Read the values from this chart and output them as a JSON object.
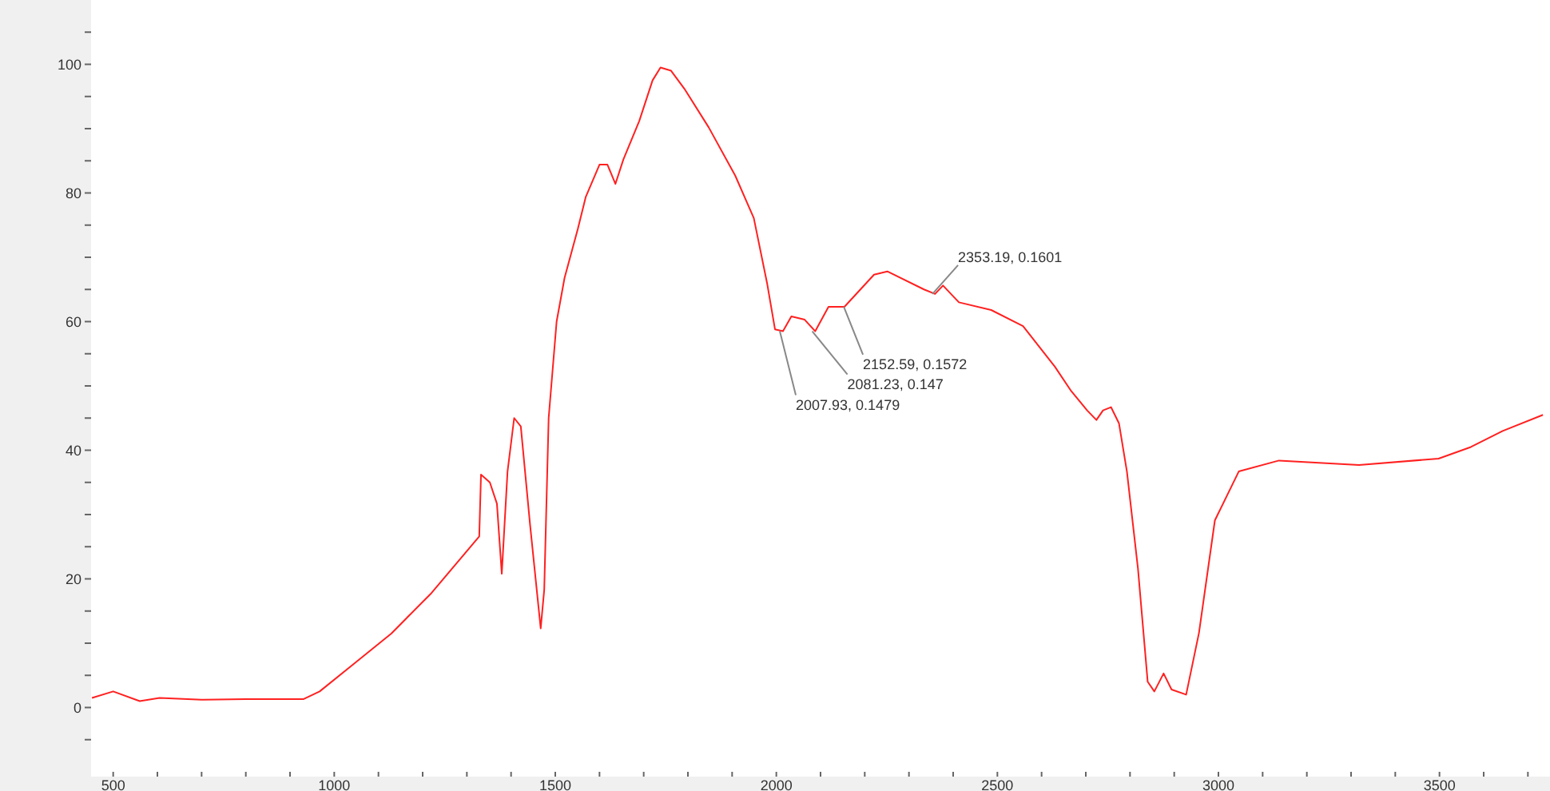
{
  "chart_data": {
    "type": "line",
    "x": [
      452,
      500,
      560,
      605,
      700,
      800,
      930,
      967,
      1039,
      1129,
      1220,
      1328,
      1332,
      1352,
      1368,
      1379,
      1392,
      1407,
      1422,
      1443,
      1467,
      1475,
      1485,
      1503,
      1521,
      1551,
      1569,
      1600,
      1618,
      1636,
      1654,
      1690,
      1720,
      1738,
      1762,
      1792,
      1847,
      1907,
      1949,
      1979,
      1997,
      2015,
      2034,
      2064,
      2088,
      2118,
      2154,
      2221,
      2251,
      2334,
      2359,
      2377,
      2413,
      2486,
      2558,
      2630,
      2667,
      2703,
      2724,
      2739,
      2757,
      2775,
      2793,
      2818,
      2840,
      2855,
      2876,
      2894,
      2927,
      2956,
      2992,
      3046,
      3137,
      3318,
      3498,
      3571,
      3643,
      3734
    ],
    "series": [
      {
        "color": "#ff2020",
        "values": [
          1.5,
          2.5,
          1,
          1.5,
          1.2,
          1.3,
          1.3,
          2.5,
          6.5,
          11.5,
          17.8,
          26.6,
          36.2,
          35,
          31.7,
          20.8,
          36.7,
          45,
          43.7,
          28.4,
          12.3,
          18.3,
          45,
          60,
          66.8,
          74.4,
          79.4,
          84.4,
          84.4,
          81.4,
          85.2,
          91.2,
          97.5,
          99.5,
          99,
          96.2,
          90.2,
          82.7,
          76.1,
          66,
          58.8,
          58.5,
          60.8,
          60.3,
          58.5,
          62.3,
          62.3,
          67.3,
          67.8,
          65,
          64.3,
          65.6,
          63,
          61.8,
          59.3,
          53,
          49.2,
          46.2,
          44.7,
          46.2,
          46.7,
          44.2,
          36.7,
          21.6,
          4,
          2.5,
          5.3,
          2.8,
          2,
          11.6,
          29.1,
          36.7,
          38.4,
          37.7,
          38.7,
          40.5,
          43,
          45.5
        ]
      }
    ],
    "xlim": [
      450,
      3750
    ],
    "xticks": [
      500,
      {
        "value": 600,
        "label": null
      },
      {
        "value": 700,
        "label": null
      },
      {
        "value": 800,
        "label": null
      },
      {
        "value": 900,
        "label": null
      },
      1000,
      {
        "value": 1100,
        "label": null
      },
      {
        "value": 1200,
        "label": null
      },
      {
        "value": 1300,
        "label": null
      },
      {
        "value": 1400,
        "label": null
      },
      1500,
      {
        "value": 1600,
        "label": null
      },
      {
        "value": 1700,
        "label": null
      },
      {
        "value": 1800,
        "label": null
      },
      {
        "value": 1900,
        "label": null
      },
      2000,
      {
        "value": 2100,
        "label": null
      },
      {
        "value": 2200,
        "label": null
      },
      {
        "value": 2300,
        "label": null
      },
      {
        "value": 2400,
        "label": null
      },
      2500,
      {
        "value": 2600,
        "label": null
      },
      {
        "value": 2700,
        "label": null
      },
      {
        "value": 2800,
        "label": null
      },
      {
        "value": 2900,
        "label": null
      },
      3000,
      {
        "value": 3100,
        "label": null
      },
      {
        "value": 3200,
        "label": null
      },
      {
        "value": 3300,
        "label": null
      },
      {
        "value": 3400,
        "label": null
      },
      3500,
      {
        "value": 3600,
        "label": null
      },
      {
        "value": 3700,
        "label": null
      }
    ],
    "ylim": [
      -10,
      110
    ],
    "yticks": [
      {
        "value": -5,
        "label": null
      },
      0,
      {
        "value": 5,
        "label": null
      },
      {
        "value": 10,
        "label": null
      },
      {
        "value": 15,
        "label": null
      },
      20,
      {
        "value": 25,
        "label": null
      },
      {
        "value": 30,
        "label": null
      },
      {
        "value": 35,
        "label": null
      },
      40,
      {
        "value": 45,
        "label": null
      },
      {
        "value": 50,
        "label": null
      },
      {
        "value": 55,
        "label": null
      },
      60,
      {
        "value": 65,
        "label": null
      },
      {
        "value": 70,
        "label": null
      },
      {
        "value": 75,
        "label": null
      },
      80,
      {
        "value": 85,
        "label": null
      },
      {
        "value": 90,
        "label": null
      },
      {
        "value": 95,
        "label": null
      },
      100,
      {
        "value": 105,
        "label": null
      }
    ],
    "annotations": [
      {
        "text": "2007.93, 0.1479",
        "x": 2007.93,
        "y": 58.5
      },
      {
        "text": "2081.23, 0.147",
        "x": 2081.23,
        "y": 58.5
      },
      {
        "text": "2152.59, 0.1572",
        "x": 2152.59,
        "y": 62.3
      },
      {
        "text": "2353.19, 0.1601",
        "x": 2353.19,
        "y": 64.3
      }
    ],
    "marker": "none",
    "line_style": "solid"
  }
}
